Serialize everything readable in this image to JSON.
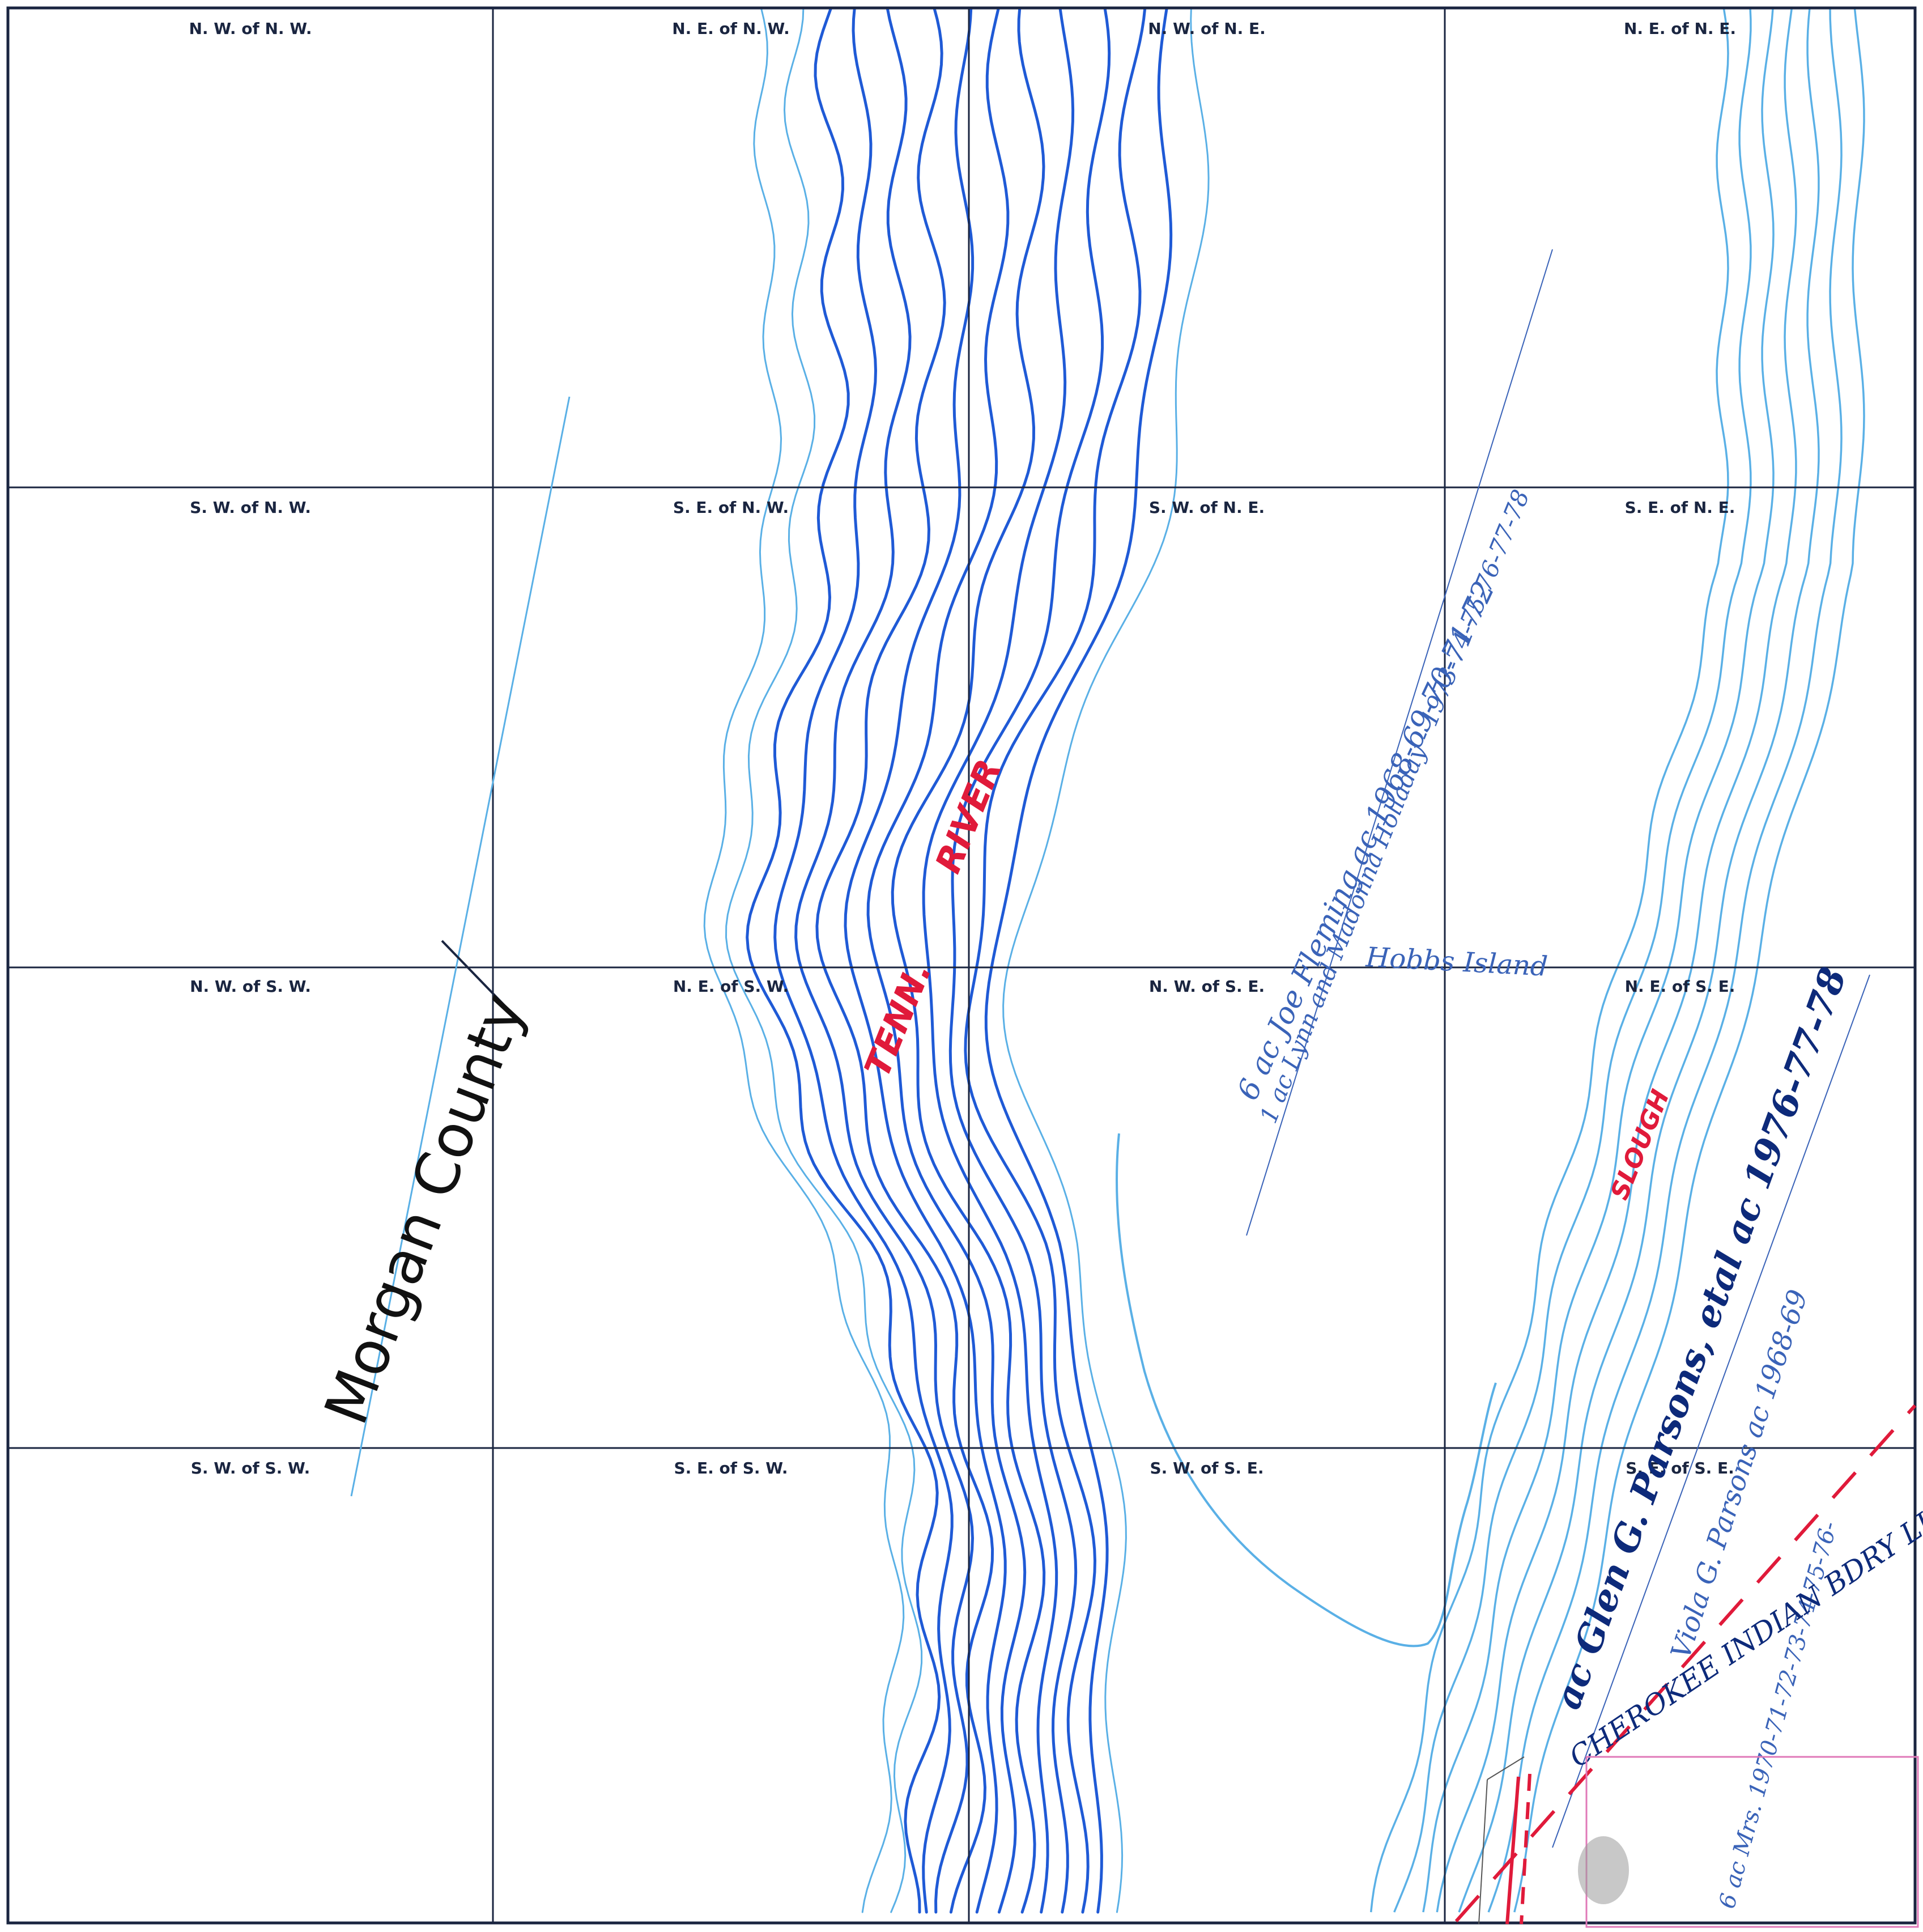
{
  "quarter_labels": {
    "nw_nw": "N. W.  of  N. W.",
    "ne_nw": "N. E.  of  N. W.",
    "nw_ne": "N. W.  of  N. E.",
    "ne_ne": "N. E.  of  N. E.",
    "sw_nw": "S. W.  of  N. W.",
    "se_nw": "S. E.  of  N. W.",
    "sw_ne": "S. W.  of  N. E.",
    "se_ne": "S. E.  of  N. E.",
    "nw_sw": "N. W.  of  S. W.",
    "ne_sw": "N. E.  of  S. W.",
    "nw_se": "N. W.  of  S. E.",
    "ne_se": "N. E.  of  S. E.",
    "sw_sw": "S. W.  of  S. W.",
    "se_sw": "S. E.  of  S. W.",
    "sw_se": "S. W.  of  S. E.",
    "se_se": "S. E.  of  S. E."
  },
  "annotations": {
    "county": "Morgan County",
    "river_1": "TENN.",
    "river_2": "RIVER",
    "island": "Hobbs Island",
    "slough": "SLOUGH",
    "owner_1": "6 ac  Joe Fleming  ac  1968-69-70-71-72",
    "owner_2": "1 ac  Lynn and Madonna Holladay - 1973-74-75-76-77-78",
    "owner_3": "ac Glen G. Parsons, etal ac 1976-77-78",
    "owner_4": "Viola G. Parsons  ac  1968-69",
    "owner_5": "6 ac  Mrs.  1970-71-72-73-74-75-76-",
    "boundary": "CHEROKEE  INDIAN  BDRY LINE"
  },
  "colors": {
    "grid": "#1a2540",
    "river_dark": "#1f5ad6",
    "river_light": "#5ab0e6",
    "handwriting_blue": "#3a63b8",
    "red_ink": "#e01a3a",
    "pink_ink": "#e07ab8"
  }
}
